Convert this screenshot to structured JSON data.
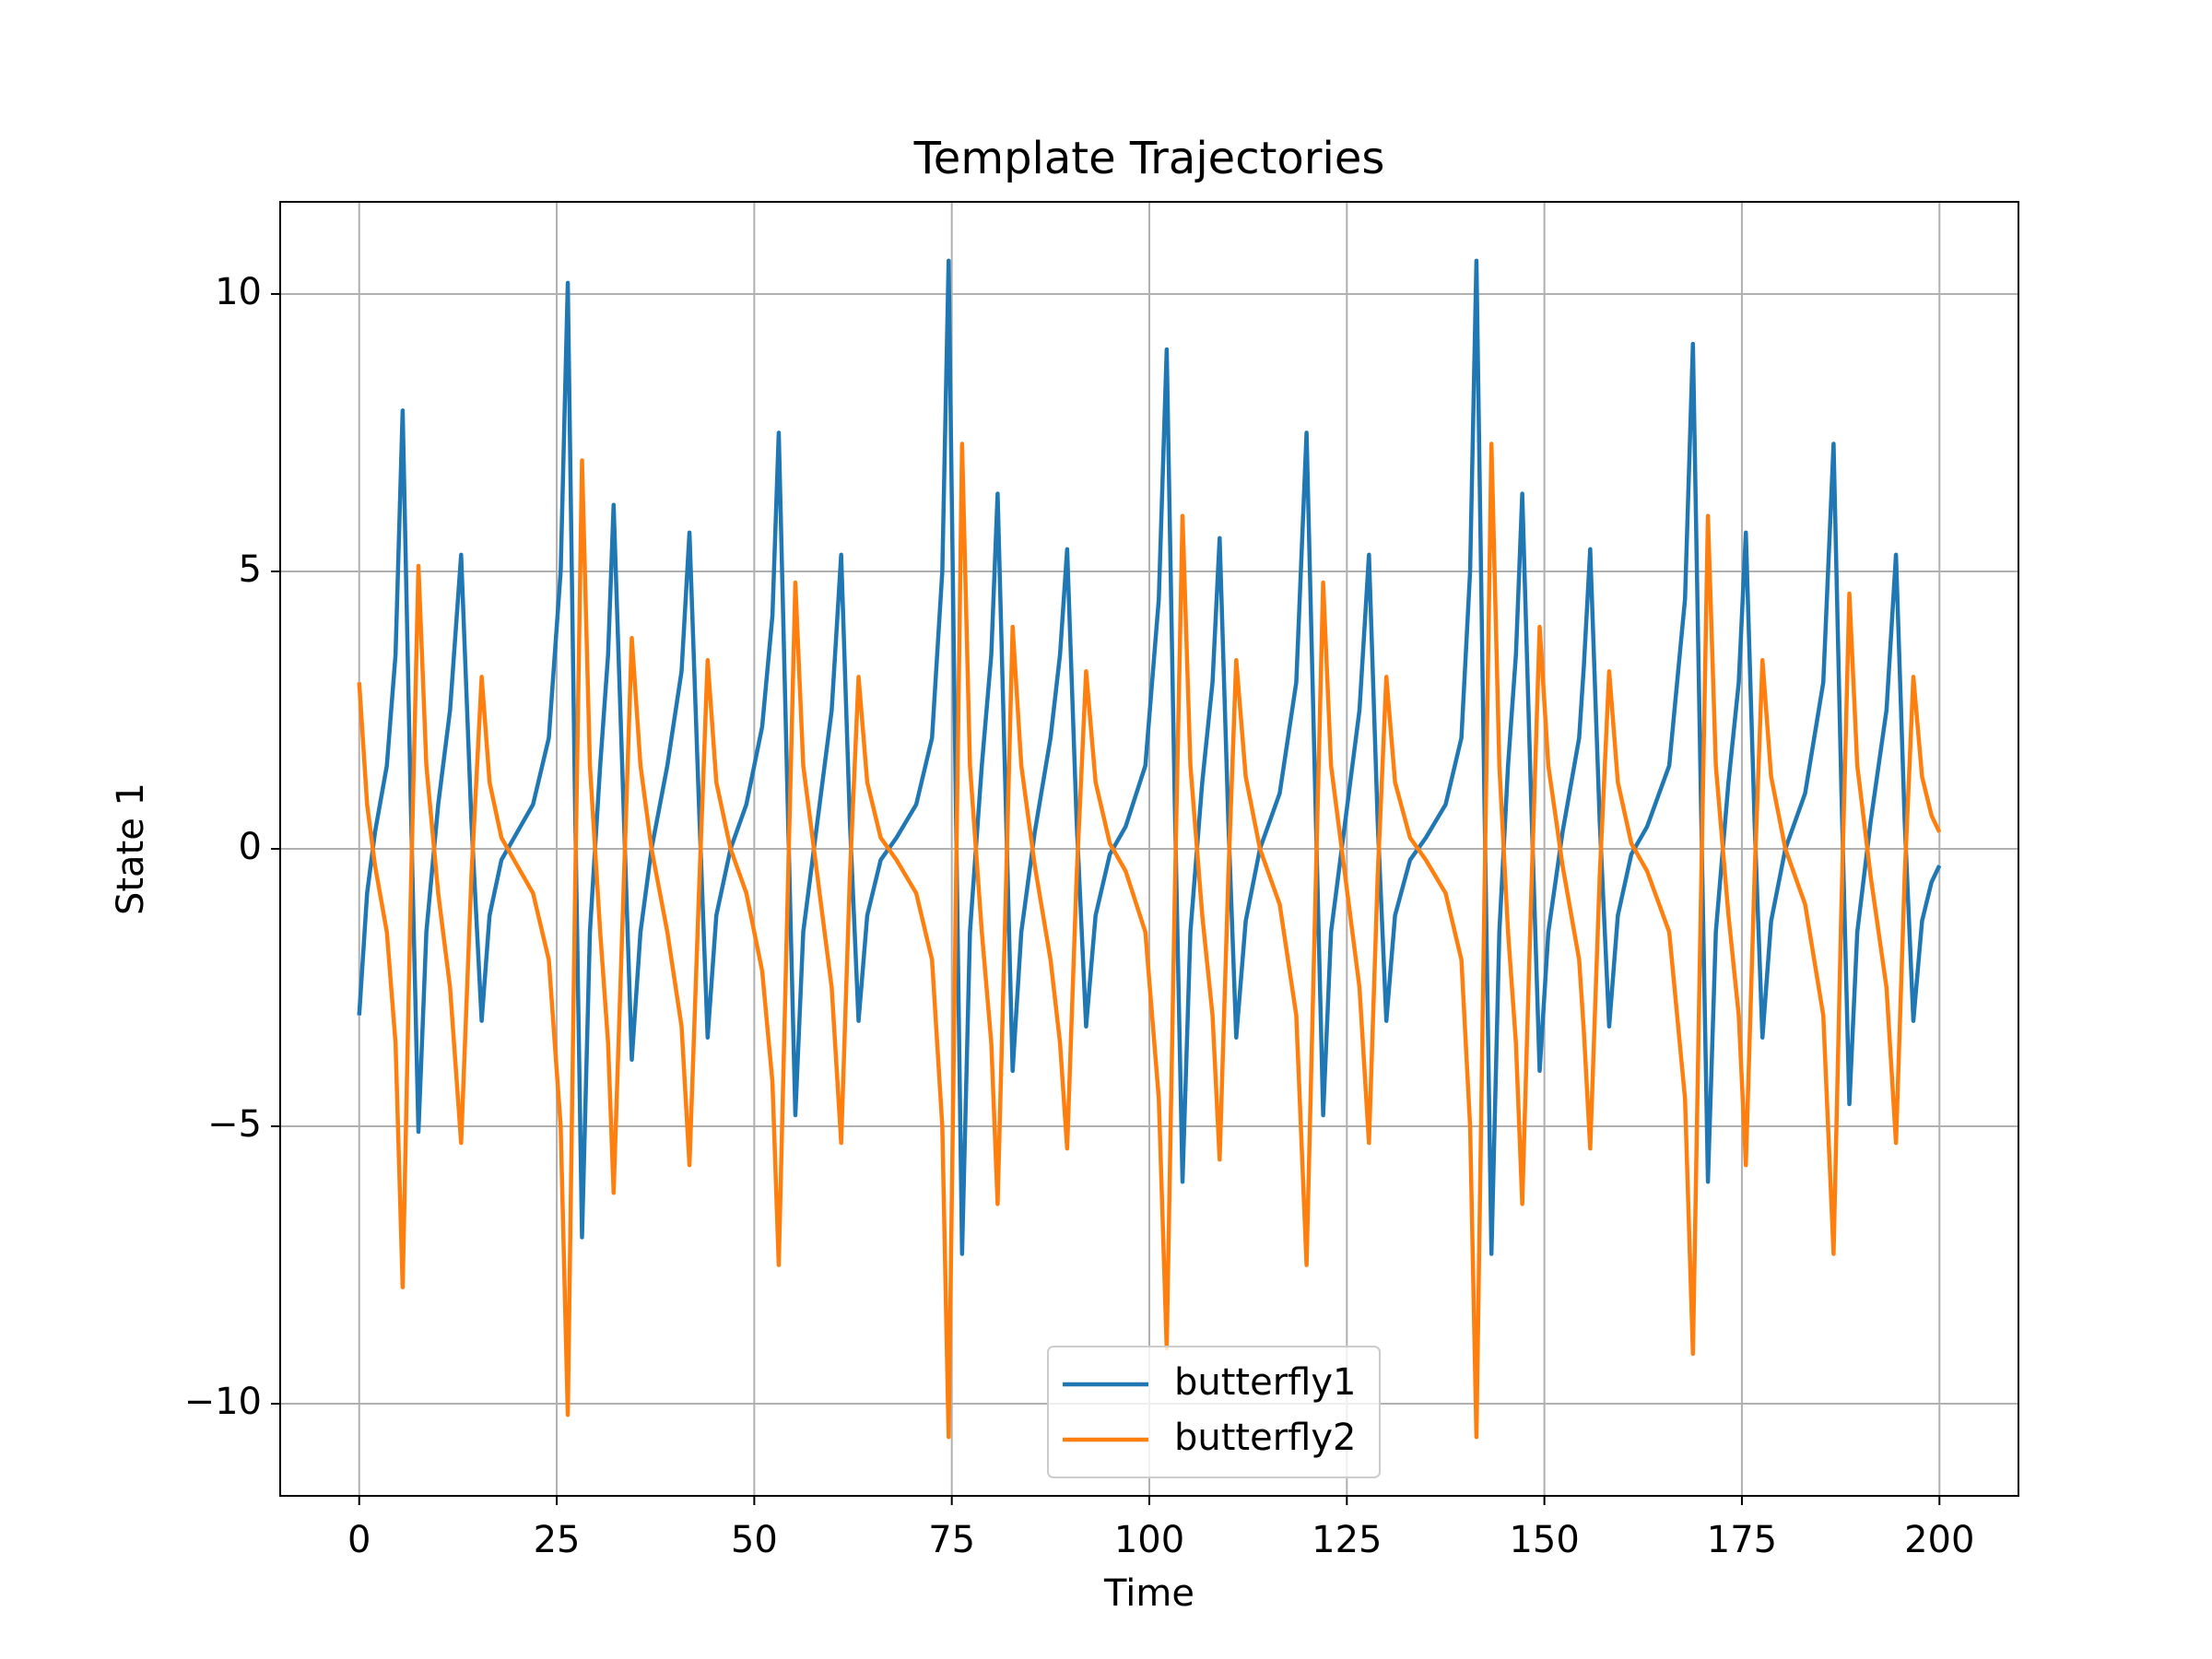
{
  "chart_data": {
    "type": "line",
    "title": "Template Trajectories",
    "xlabel": "Time",
    "ylabel": "State 1",
    "x": [
      0,
      1,
      2,
      3.5,
      4.6,
      5.5,
      6.5,
      7.5,
      8.5,
      10,
      11.5,
      12.9,
      14.2,
      15.5,
      16.5,
      18,
      20,
      22,
      24,
      25.5,
      26.4,
      27.3,
      28.2,
      29.2,
      30.5,
      31.5,
      32.2,
      33.4,
      34.5,
      35.6,
      37,
      39,
      40.8,
      41.8,
      43,
      44.1,
      45.2,
      47,
      49,
      51,
      52.3,
      53.1,
      54.2,
      55.2,
      56.2,
      58,
      59.8,
      61,
      62.1,
      63.2,
      64.3,
      66,
      68,
      70.5,
      72.5,
      73.8,
      74.6,
      75.5,
      76.3,
      77.3,
      78.8,
      80,
      80.8,
      81.8,
      82.7,
      83.8,
      85.5,
      87.5,
      88.7,
      89.6,
      90.8,
      92,
      93.2,
      95,
      97,
      99.5,
      101.2,
      102.2,
      103.2,
      104.2,
      105.2,
      106.7,
      108,
      108.9,
      110,
      111,
      112.2,
      114,
      116.5,
      118.6,
      119.9,
      121,
      122,
      123,
      124.8,
      126.6,
      127.8,
      128.9,
      130,
      131.1,
      133,
      135,
      137.5,
      139.5,
      140.6,
      141.4,
      142.4,
      143.3,
      144.3,
      145.4,
      146.4,
      147.2,
      148.3,
      149.4,
      150.5,
      152.3,
      154.4,
      155,
      155.8,
      157,
      158.2,
      159.3,
      161,
      163,
      165.8,
      167.8,
      168.8,
      169.8,
      170.7,
      171.7,
      173.3,
      174.6,
      175.5,
      176.6,
      177.6,
      178.7,
      180.5,
      183,
      185.3,
      186.6,
      187.6,
      188.6,
      189.6,
      191.3,
      193.3,
      194.5,
      195.6,
      196.7,
      197.8,
      199,
      200
    ],
    "series": [
      {
        "name": "butterfly1",
        "color": "#1f77b4",
        "values": [
          -3,
          -0.8,
          0.3,
          1.5,
          3.5,
          7.9,
          1,
          -5.1,
          -1.5,
          0.8,
          2.5,
          5.3,
          0.5,
          -3.1,
          -1.2,
          -0.2,
          0.3,
          0.8,
          2,
          5,
          10.2,
          1,
          -7.0,
          -1.5,
          1.5,
          3.5,
          6.2,
          1,
          -3.8,
          -1.5,
          0,
          1.5,
          3.2,
          5.7,
          0.8,
          -3.4,
          -1.2,
          0,
          0.8,
          2.2,
          4.2,
          7.5,
          1,
          -4.8,
          -1.5,
          0.5,
          2.5,
          5.3,
          0.5,
          -3.1,
          -1.2,
          -0.2,
          0.2,
          0.8,
          2,
          5,
          10.6,
          1,
          -7.3,
          -1.5,
          1.5,
          3.5,
          6.4,
          1,
          -4.0,
          -1.5,
          0.3,
          2,
          3.5,
          5.4,
          0.5,
          -3.2,
          -1.2,
          -0.1,
          0.4,
          1.5,
          4.5,
          9.0,
          1,
          -6.0,
          -1.5,
          1.2,
          3,
          5.6,
          0.5,
          -3.4,
          -1.3,
          0,
          1,
          3,
          7.5,
          1,
          -4.8,
          -1.5,
          0.5,
          2.5,
          5.3,
          0.5,
          -3.1,
          -1.2,
          -0.2,
          0.2,
          0.8,
          2,
          5,
          10.6,
          1,
          -7.3,
          -1.5,
          1.5,
          3.5,
          6.4,
          1,
          -4.0,
          -1.5,
          0.3,
          2,
          3.3,
          5.4,
          0.5,
          -3.2,
          -1.2,
          -0.1,
          0.4,
          1.5,
          4.5,
          9.1,
          1,
          -6.0,
          -1.5,
          1.2,
          3,
          5.7,
          0.5,
          -3.4,
          -1.3,
          0,
          1,
          3,
          7.3,
          1,
          -4.6,
          -1.5,
          0.5,
          2.5,
          5.3,
          0.5,
          -3.1,
          -1.3,
          -0.6,
          -0.3
        ]
      },
      {
        "name": "butterfly2",
        "color": "#ff7f0e",
        "values": [
          3,
          0.8,
          -0.3,
          -1.5,
          -3.5,
          -7.9,
          -1,
          5.1,
          1.5,
          -0.8,
          -2.5,
          -5.3,
          -0.5,
          3.1,
          1.2,
          0.2,
          -0.3,
          -0.8,
          -2,
          -5,
          -10.2,
          -1,
          7.0,
          1.5,
          -1.5,
          -3.5,
          -6.2,
          -1,
          3.8,
          1.5,
          0,
          -1.5,
          -3.2,
          -5.7,
          -0.8,
          3.4,
          1.2,
          0,
          -0.8,
          -2.2,
          -4.2,
          -7.5,
          -1,
          4.8,
          1.5,
          -0.5,
          -2.5,
          -5.3,
          -0.5,
          3.1,
          1.2,
          0.2,
          -0.2,
          -0.8,
          -2,
          -5,
          -10.6,
          -1,
          7.3,
          1.5,
          -1.5,
          -3.5,
          -6.4,
          -1,
          4.0,
          1.5,
          -0.3,
          -2,
          -3.5,
          -5.4,
          -0.5,
          3.2,
          1.2,
          0.1,
          -0.4,
          -1.5,
          -4.5,
          -9.0,
          -1,
          6.0,
          1.5,
          -1.2,
          -3,
          -5.6,
          -0.5,
          3.4,
          1.3,
          0,
          -1,
          -3,
          -7.5,
          -1,
          4.8,
          1.5,
          -0.5,
          -2.5,
          -5.3,
          -0.5,
          3.1,
          1.2,
          0.2,
          -0.2,
          -0.8,
          -2,
          -5,
          -10.6,
          -1,
          7.3,
          1.5,
          -1.5,
          -3.5,
          -6.4,
          -1,
          4.0,
          1.5,
          -0.3,
          -2,
          -3.3,
          -5.4,
          -0.5,
          3.2,
          1.2,
          0.1,
          -0.4,
          -1.5,
          -4.5,
          -9.1,
          -1,
          6.0,
          1.5,
          -1.2,
          -3,
          -5.7,
          -0.5,
          3.4,
          1.3,
          0,
          -1,
          -3,
          -7.3,
          -1,
          4.6,
          1.5,
          -0.5,
          -2.5,
          -5.3,
          -0.5,
          3.1,
          1.3,
          0.6,
          0.3
        ]
      }
    ],
    "xlim": [
      -10,
      210
    ],
    "xticks": [
      0,
      25,
      50,
      75,
      100,
      125,
      150,
      175,
      200
    ],
    "ylim": [
      -11.66,
      11.66
    ],
    "yticks": [
      {
        "value": -10,
        "label": "−10"
      },
      {
        "value": -5,
        "label": "−5"
      },
      0,
      5,
      10
    ],
    "grid": true,
    "legend": "lower center"
  }
}
